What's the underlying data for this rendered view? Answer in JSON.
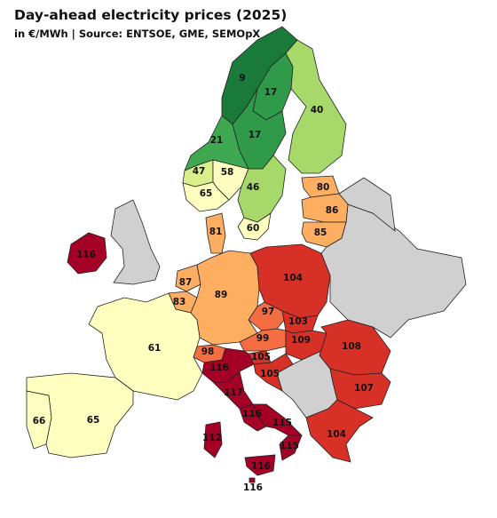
{
  "title": "Day-ahead electricity prices (2025)",
  "subtitle": "in €/MWh | Source: ENTSOE, GME, SEMOpX",
  "zones": [
    {
      "value": 9,
      "color": "#1a7a3a"
    },
    {
      "value": 17,
      "color": "#2e9a4a"
    },
    {
      "value": 40,
      "color": "#a6d96a"
    },
    {
      "value": 17,
      "color": "#2e9a4a"
    },
    {
      "value": 21,
      "color": "#3fa853"
    },
    {
      "value": 47,
      "color": "#d9ef8b"
    },
    {
      "value": 58,
      "color": "#fdfdbf"
    },
    {
      "value": 65,
      "color": "#ffffbf"
    },
    {
      "value": 46,
      "color": "#a6d96a"
    },
    {
      "value": 60,
      "color": "#ffffbf"
    },
    {
      "value": 80,
      "color": "#fdae61"
    },
    {
      "value": 86,
      "color": "#fdae61"
    },
    {
      "value": 85,
      "color": "#fdae61"
    },
    {
      "value": 81,
      "color": "#fdae61"
    },
    {
      "value": 116,
      "color": "#a50026"
    },
    {
      "value": 87,
      "color": "#fdae61"
    },
    {
      "value": 83,
      "color": "#fdae61"
    },
    {
      "value": 89,
      "color": "#fdae61"
    },
    {
      "value": 104,
      "color": "#d73027"
    },
    {
      "value": 97,
      "color": "#f46d43"
    },
    {
      "value": 103,
      "color": "#d73027"
    },
    {
      "value": 99,
      "color": "#f46d43"
    },
    {
      "value": 109,
      "color": "#d73027"
    },
    {
      "value": 108,
      "color": "#d73027"
    },
    {
      "value": 98,
      "color": "#f46d43"
    },
    {
      "value": 105,
      "color": "#d73027"
    },
    {
      "value": 105,
      "color": "#d73027"
    },
    {
      "value": 116,
      "color": "#a50026"
    },
    {
      "value": 117,
      "color": "#a50026"
    },
    {
      "value": 116,
      "color": "#a50026"
    },
    {
      "value": 115,
      "color": "#a50026"
    },
    {
      "value": 115,
      "color": "#a50026"
    },
    {
      "value": 112,
      "color": "#a50026"
    },
    {
      "value": 116,
      "color": "#a50026"
    },
    {
      "value": 116,
      "color": "#a50026"
    },
    {
      "value": 107,
      "color": "#d73027"
    },
    {
      "value": 104,
      "color": "#d73027"
    },
    {
      "value": 61,
      "color": "#ffffbf"
    },
    {
      "value": 66,
      "color": "#ffffbf"
    },
    {
      "value": 65,
      "color": "#ffffbf"
    }
  ]
}
